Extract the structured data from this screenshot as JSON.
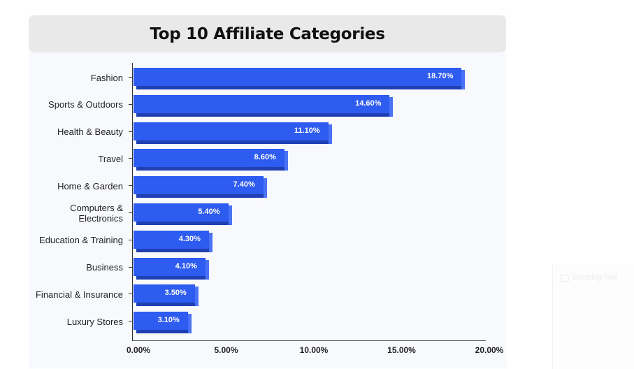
{
  "chart_data": {
    "type": "bar",
    "orientation": "horizontal",
    "title": "Top 10 Affiliate Categories",
    "categories": [
      "Fashion",
      "Sports & Outdoors",
      "Health & Beauty",
      "Travel",
      "Home & Garden",
      "Computers & Electronics",
      "Education & Training",
      "Business",
      "Financial & Insurance",
      "Luxury Stores"
    ],
    "values": [
      18.7,
      14.6,
      11.1,
      8.6,
      7.4,
      5.4,
      4.3,
      4.1,
      3.5,
      3.1
    ],
    "value_labels": [
      "18.70%",
      "14.60%",
      "11.10%",
      "8.60%",
      "7.40%",
      "5.40%",
      "4.30%",
      "4.10%",
      "3.50%",
      "3.10%"
    ],
    "xlabel": "",
    "ylabel": "",
    "xlim": [
      0,
      20
    ],
    "x_tick_labels": [
      "0.00%",
      "5.00%",
      "10.00%",
      "15.00%",
      "20.00%"
    ],
    "grid": false,
    "legend": null,
    "bar_color": "#2f5cf0"
  },
  "overlay": {
    "app_label": "Snipping Tool"
  }
}
